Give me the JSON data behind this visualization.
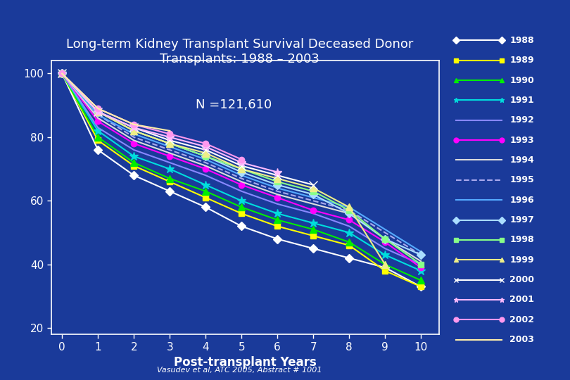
{
  "title": "Long-term Kidney Transplant Survival Deceased Donor\nTransplants: 1988 – 2003",
  "annotation": "N =121,610",
  "xlabel": "Post-transplant Years",
  "footnote": "Vasudev et al, ATC 2005, Abstract # 1001",
  "background_color": "#1a3a9a",
  "plot_bg_color": "#1a3a9a",
  "text_color": "white",
  "ylim": [
    18,
    104
  ],
  "xlim": [
    -0.3,
    10.5
  ],
  "yticks": [
    20,
    40,
    60,
    80,
    100
  ],
  "xticks": [
    0,
    1,
    2,
    3,
    4,
    5,
    6,
    7,
    8,
    9,
    10
  ],
  "years": [
    "1988",
    "1989",
    "1990",
    "1991",
    "1992",
    "1993",
    "1994",
    "1995",
    "1996",
    "1997",
    "1998",
    "1999",
    "2000",
    "2001",
    "2002",
    "2003"
  ],
  "series": {
    "1988": {
      "color": "#FFFFFF",
      "marker": "D",
      "linestyle": "-",
      "markercolor": "#FFFFFF",
      "data": [
        100,
        76,
        68,
        63,
        58,
        52,
        48,
        45,
        42,
        39,
        33
      ]
    },
    "1989": {
      "color": "#FFFF00",
      "marker": "s",
      "linestyle": "-",
      "markercolor": "#FFFF00",
      "data": [
        100,
        79,
        71,
        66,
        61,
        56,
        52,
        49,
        46,
        38,
        33
      ]
    },
    "1990": {
      "color": "#00EE00",
      "marker": "^",
      "linestyle": "-",
      "markercolor": "#00EE00",
      "data": [
        100,
        80,
        72,
        67,
        63,
        58,
        54,
        51,
        47,
        40,
        35
      ]
    },
    "1991": {
      "color": "#00DDDD",
      "marker": "*",
      "linestyle": "-",
      "markercolor": "#00DDDD",
      "data": [
        100,
        82,
        74,
        70,
        65,
        60,
        56,
        53,
        50,
        43,
        38
      ]
    },
    "1992": {
      "color": "#8888FF",
      "marker": "None",
      "linestyle": "-",
      "markercolor": "#8888FF",
      "data": [
        100,
        83,
        76,
        72,
        68,
        63,
        59,
        56,
        52,
        45,
        40
      ]
    },
    "1993": {
      "color": "#FF00FF",
      "marker": "o",
      "linestyle": "-",
      "markercolor": "#FF00FF",
      "data": [
        100,
        85,
        78,
        74,
        70,
        65,
        61,
        57,
        54,
        47,
        39
      ]
    },
    "1994": {
      "color": "#DDDDDD",
      "marker": "None",
      "linestyle": "-",
      "markercolor": "#DDDDDD",
      "data": [
        100,
        86,
        79,
        75,
        71,
        66,
        62,
        59,
        56,
        48,
        41
      ]
    },
    "1995": {
      "color": "#AAAAEE",
      "marker": "None",
      "linestyle": "--",
      "markercolor": "#AAAAEE",
      "data": [
        100,
        87,
        80,
        76,
        72,
        67,
        63,
        60,
        57,
        50,
        43
      ]
    },
    "1996": {
      "color": "#55AAFF",
      "marker": "None",
      "linestyle": "-",
      "markercolor": "#55AAFF",
      "data": [
        100,
        87,
        81,
        77,
        73,
        68,
        64,
        61,
        58,
        51,
        44
      ]
    },
    "1997": {
      "color": "#AADDFF",
      "marker": "D",
      "linestyle": "-",
      "markercolor": "#AADDFF",
      "data": [
        100,
        88,
        82,
        78,
        74,
        69,
        65,
        62,
        56,
        48,
        43
      ]
    },
    "1998": {
      "color": "#88FF88",
      "marker": "s",
      "linestyle": "-",
      "markercolor": "#88FF88",
      "data": [
        100,
        88,
        82,
        78,
        74,
        70,
        66,
        63,
        57,
        48,
        40
      ]
    },
    "1999": {
      "color": "#EEEE88",
      "marker": "^",
      "linestyle": "-",
      "markercolor": "#EEEE88",
      "data": [
        100,
        88,
        82,
        78,
        75,
        70,
        67,
        64,
        58,
        40,
        null
      ]
    },
    "2000": {
      "color": "#FFFFFF",
      "marker": "x",
      "linestyle": "-",
      "markercolor": "#FFFFFF",
      "data": [
        100,
        88,
        83,
        79,
        76,
        71,
        68,
        65,
        null,
        null,
        null
      ]
    },
    "2001": {
      "color": "#FFBBFF",
      "marker": "*",
      "linestyle": "-",
      "markercolor": "#FFBBFF",
      "data": [
        100,
        88,
        83,
        80,
        77,
        72,
        69,
        null,
        null,
        null,
        null
      ]
    },
    "2002": {
      "color": "#FF99EE",
      "marker": "o",
      "linestyle": "-",
      "markercolor": "#FF99EE",
      "data": [
        100,
        89,
        84,
        81,
        78,
        73,
        null,
        null,
        null,
        null,
        null
      ]
    },
    "2003": {
      "color": "#FFEEAA",
      "marker": "None",
      "linestyle": "-",
      "markercolor": "#FFEEAA",
      "data": [
        100,
        89,
        84,
        82,
        null,
        null,
        null,
        null,
        null,
        null,
        null
      ]
    }
  }
}
